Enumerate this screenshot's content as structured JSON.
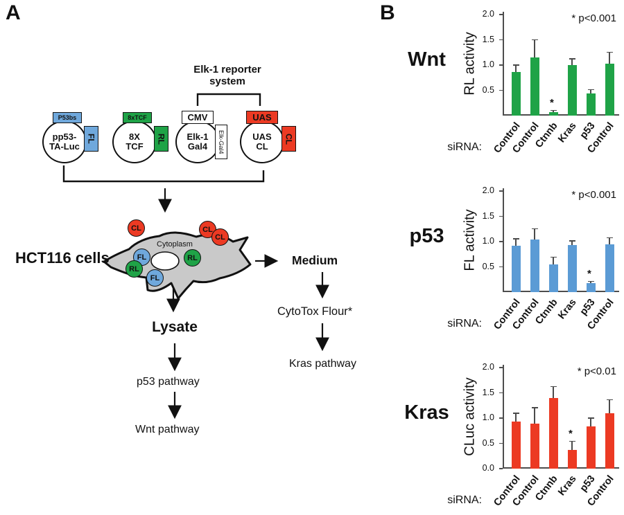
{
  "colors": {
    "blue": "#6FA8DC",
    "green": "#1FA347",
    "red": "#EC3A23",
    "cell_gray": "#C9C9C9"
  },
  "panelA": {
    "label": "A",
    "reporter_bracket_label": "Elk-1 reporter\nsystem",
    "plasmids": [
      {
        "name": "pp53-\nTA-Luc",
        "top_tab": "P53bs",
        "side_tab": "FL"
      },
      {
        "name": "8X\nTCF",
        "top_tab": "8xTCF",
        "side_tab": "RL"
      },
      {
        "name": "Elk-1\nGal4",
        "top_tab": "CMV",
        "side_tab": "Elk-Gal4"
      },
      {
        "name": "UAS\nCL",
        "top_tab": "UAS",
        "side_tab": "CL"
      }
    ],
    "cell_label": "HCT116 cells",
    "cytoplasm_label": "Cytoplasm",
    "molecules": [
      {
        "label": "CL"
      },
      {
        "label": "CL"
      },
      {
        "label": "CL"
      },
      {
        "label": "FL"
      },
      {
        "label": "FL"
      },
      {
        "label": "RL"
      },
      {
        "label": "RL"
      }
    ],
    "lysate_label": "Lysate",
    "medium_label": "Medium",
    "cytotox_label": "CytoTox Flour*",
    "p53_pathway_label": "p53 pathway",
    "wnt_pathway_label": "Wnt pathway",
    "kras_pathway_label": "Kras pathway"
  },
  "panelB": {
    "label": "B",
    "sirna_label": "siRNA:"
  },
  "chart_data": [
    {
      "type": "bar",
      "title": "Wnt",
      "ylabel": "RL activity",
      "annotation": "* p<0.001",
      "color": "#1FA347",
      "categories": [
        "Control",
        "Control",
        "Ctnnb",
        "Kras",
        "p53",
        "Control"
      ],
      "values": [
        0.86,
        1.15,
        0.07,
        1.0,
        0.44,
        1.03
      ],
      "errors": [
        0.14,
        0.35,
        0.03,
        0.12,
        0.07,
        0.22
      ],
      "significant_index": 2,
      "yticks": [
        0.5,
        1.0,
        1.5,
        2.0
      ],
      "ylim": [
        0,
        2.0
      ],
      "xlabel_prefix": "siRNA:"
    },
    {
      "type": "bar",
      "title": "p53",
      "ylabel": "FL activity",
      "annotation": "* p<0.001",
      "color": "#5B9BD5",
      "categories": [
        "Control",
        "Control",
        "Ctnnb",
        "Kras",
        "p53",
        "Control"
      ],
      "values": [
        0.92,
        1.04,
        0.55,
        0.93,
        0.18,
        0.95
      ],
      "errors": [
        0.13,
        0.21,
        0.14,
        0.08,
        0.03,
        0.12
      ],
      "significant_index": 4,
      "yticks": [
        0.5,
        1.0,
        1.5,
        2.0
      ],
      "ylim": [
        0,
        2.0
      ],
      "xlabel_prefix": "siRNA:"
    },
    {
      "type": "bar",
      "title": "Kras",
      "ylabel": "CLuc activity",
      "annotation": "* p<0.01",
      "color": "#EC3A23",
      "categories": [
        "Control",
        "Control",
        "Ctnnb",
        "Kras",
        "p53",
        "Control"
      ],
      "values": [
        0.93,
        0.89,
        1.4,
        0.37,
        0.83,
        1.1
      ],
      "errors": [
        0.16,
        0.31,
        0.22,
        0.17,
        0.17,
        0.26
      ],
      "significant_index": 3,
      "yticks": [
        0.0,
        0.5,
        1.0,
        1.5,
        2.0
      ],
      "ylim": [
        0,
        2.0
      ],
      "xlabel_prefix": "siRNA:"
    }
  ]
}
